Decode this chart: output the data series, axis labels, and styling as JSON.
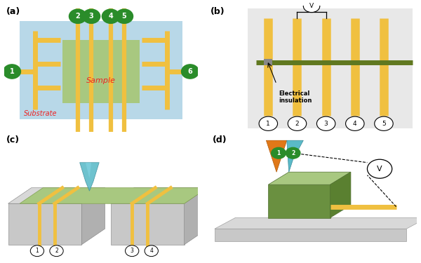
{
  "colors": {
    "gold": "#F0C040",
    "lt_blue": "#B8D8E8",
    "lt_green": "#A8C880",
    "gray_light": "#C8C8C8",
    "gray_mid": "#B0B0B0",
    "gray_dark": "#909090",
    "green_circle": "#2A8C2A",
    "red_text": "#EE2222",
    "teal": "#5ABAC8",
    "teal_dark": "#3A8A98",
    "orange": "#E07818",
    "lt_gray_bg": "#E8E8E8",
    "dk_green_wire": "#607820",
    "black": "#000000",
    "white": "#FFFFFF"
  },
  "panel_labels": [
    "(a)",
    "(b)",
    "(c)",
    "(d)"
  ]
}
